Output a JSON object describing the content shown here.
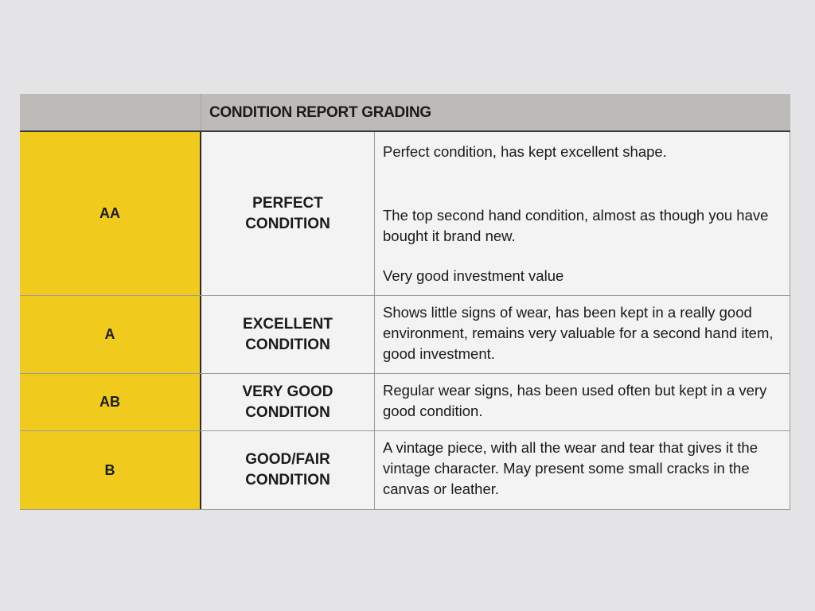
{
  "table": {
    "title": "CONDITION REPORT GRADING",
    "accent_color": "#f0cb1e",
    "rows": [
      {
        "grade": "AA",
        "condition": [
          "PERFECT",
          "CONDITION"
        ],
        "description": [
          "Perfect condition, has kept excellent shape.",
          "The top second hand condition, almost as though you have bought it brand new.",
          "Very good investment value"
        ]
      },
      {
        "grade": "A",
        "condition": [
          "EXCELLENT",
          "CONDITION"
        ],
        "description": [
          "Shows little signs of wear, has been kept in a really good environment, remains very valuable for a second hand item, good investment."
        ]
      },
      {
        "grade": "AB",
        "condition": [
          "VERY GOOD",
          "CONDITION"
        ],
        "description": [
          "Regular wear signs, has been used often but kept in a very good condition."
        ]
      },
      {
        "grade": "B",
        "condition": [
          "GOOD/FAIR",
          "CONDITION"
        ],
        "description": [
          "A vintage piece, with all the wear and tear that gives it the vintage character. May present some small cracks in the canvas or leather."
        ]
      }
    ]
  }
}
